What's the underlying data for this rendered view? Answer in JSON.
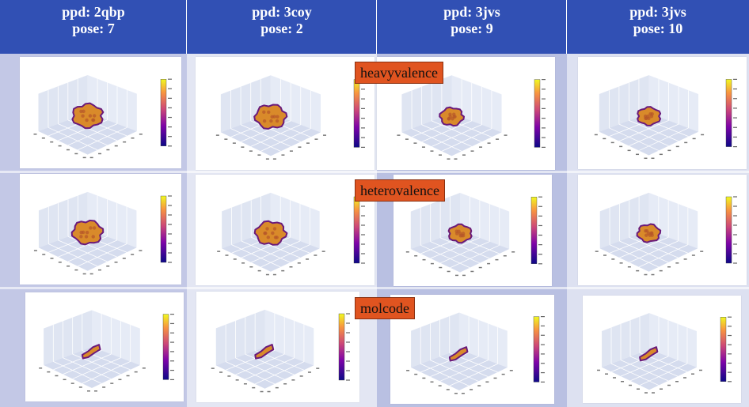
{
  "columns": [
    {
      "ppd": "ppd: 2qbp",
      "pose": "pose: 7"
    },
    {
      "ppd": "ppd: 3coy",
      "pose": "pose: 2"
    },
    {
      "ppd": "ppd: 3jvs",
      "pose": "pose: 9"
    },
    {
      "ppd": "ppd: 3jvs",
      "pose": "pose: 10"
    }
  ],
  "rows": [
    {
      "label": "heavyvalence"
    },
    {
      "label": "heterovalence"
    },
    {
      "label": "molcode"
    }
  ],
  "colors": {
    "header_bg": "#3150b4",
    "label_bg": "#e05420",
    "colorscale": "plasma"
  }
}
